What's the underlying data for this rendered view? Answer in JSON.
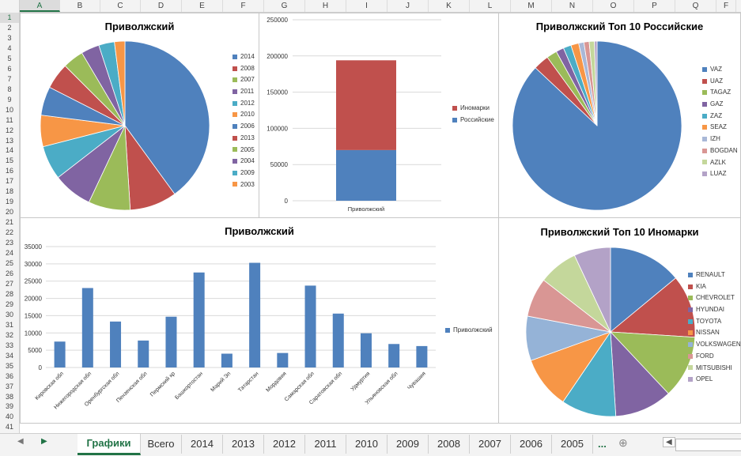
{
  "columns": [
    "A",
    "B",
    "C",
    "D",
    "E",
    "F",
    "G",
    "H",
    "I",
    "J",
    "K",
    "L",
    "M",
    "N",
    "O",
    "P",
    "Q",
    "F"
  ],
  "selected_column": "A",
  "rows": [
    "1",
    "2",
    "3",
    "4",
    "5",
    "6",
    "7",
    "8",
    "9",
    "10",
    "11",
    "12",
    "13",
    "14",
    "15",
    "16",
    "17",
    "18",
    "19",
    "20",
    "21",
    "22",
    "23",
    "24",
    "25",
    "26",
    "27",
    "28",
    "29",
    "30",
    "31",
    "32",
    "33",
    "34",
    "35",
    "36",
    "37",
    "38",
    "39",
    "40",
    "41"
  ],
  "selected_row": "1",
  "tabs": [
    "Графики",
    "Всего",
    "2014",
    "2013",
    "2012",
    "2011",
    "2010",
    "2009",
    "2008",
    "2007",
    "2006",
    "2005"
  ],
  "active_tab": "Графики",
  "tab_ellipsis": "...",
  "nav_icons": [
    "nav-prev-icon",
    "nav-next-icon",
    "add-sheet-icon",
    "scroll-left-icon"
  ],
  "chart_data": [
    {
      "id": "years-pie",
      "type": "pie",
      "title": "Приволжский",
      "labels": [
        "2014",
        "2008",
        "2007",
        "2011",
        "2012",
        "2010",
        "2006",
        "2013",
        "2005",
        "2004",
        "2009",
        "2003"
      ],
      "values": [
        40.0,
        9.0,
        8.0,
        7.5,
        6.5,
        6.0,
        5.5,
        5.0,
        4.0,
        3.5,
        3.0,
        2.0
      ],
      "colors": [
        "#4f81bd",
        "#c0504d",
        "#9bbb59",
        "#8064a2",
        "#4bacc6",
        "#f79646",
        "#4f81bd",
        "#c0504d",
        "#9bbb59",
        "#8064a2",
        "#4bacc6",
        "#f79646"
      ],
      "legend": "right"
    },
    {
      "id": "stacked-bar",
      "type": "bar",
      "stacked": true,
      "title": "",
      "categories": [
        "Приволжский"
      ],
      "series": [
        {
          "name": "Российские",
          "values": [
            70000
          ],
          "color": "#4f81bd"
        },
        {
          "name": "Иномарки",
          "values": [
            124000
          ],
          "color": "#c0504d"
        }
      ],
      "yticks": [
        "0",
        "50000",
        "100000",
        "150000",
        "200000",
        "250000"
      ],
      "ylim": [
        0,
        250000
      ],
      "legend_order": [
        "Иномарки",
        "Российские"
      ],
      "legend": "right"
    },
    {
      "id": "russian-top10-pie",
      "type": "pie",
      "title": "Приволжский Топ 10 Российские",
      "labels": [
        "VAZ",
        "UAZ",
        "TAGAZ",
        "GAZ",
        "ZAZ",
        "SEAZ",
        "IZH",
        "BOGDAN",
        "AZLK",
        "LUAZ"
      ],
      "values": [
        87.0,
        3.0,
        2.0,
        1.5,
        1.5,
        1.5,
        1.0,
        1.0,
        1.0,
        0.5
      ],
      "colors": [
        "#4f81bd",
        "#c0504d",
        "#9bbb59",
        "#8064a2",
        "#4bacc6",
        "#f79646",
        "#a9b8d7",
        "#d99694",
        "#c4d79b",
        "#b3a2c7"
      ],
      "legend": "right"
    },
    {
      "id": "regions-bar",
      "type": "bar",
      "title": "Приволжский",
      "categories": [
        "Кировская обл",
        "Нижегородская обл",
        "Оренбургская обл",
        "Пензенская обл",
        "Пермский кр",
        "Башкортостан",
        "Марий Эл",
        "Татарстан",
        "Мордовия",
        "Самарская обл",
        "Саратовская обл",
        "Удмуртия",
        "Ульяновская обл",
        "Чувашия"
      ],
      "series": [
        {
          "name": "Приволжский",
          "values": [
            7500,
            23000,
            13300,
            7800,
            14700,
            27500,
            4000,
            30300,
            4200,
            23700,
            15600,
            9900,
            6800,
            6200
          ],
          "color": "#4f81bd"
        }
      ],
      "yticks": [
        "0",
        "5000",
        "10000",
        "15000",
        "20000",
        "25000",
        "30000",
        "35000"
      ],
      "ylim": [
        0,
        35000
      ],
      "grid": true,
      "legend": "right"
    },
    {
      "id": "foreign-top10-pie",
      "type": "pie",
      "title": "Приволжский Топ 10 Иномарки",
      "labels": [
        "RENAULT",
        "KIA",
        "CHEVROLET",
        "HYUNDAI",
        "TOYOTA",
        "NISSAN",
        "VOLKSWAGEN",
        "FORD",
        "MITSUBISHI",
        "OPEL"
      ],
      "values": [
        14,
        12,
        12,
        11,
        10.5,
        10,
        8.5,
        7.5,
        7.5,
        7
      ],
      "colors": [
        "#4f81bd",
        "#c0504d",
        "#9bbb59",
        "#8064a2",
        "#4bacc6",
        "#f79646",
        "#95b3d7",
        "#d99694",
        "#c4d79b",
        "#b3a2c7"
      ],
      "legend": "right"
    }
  ]
}
